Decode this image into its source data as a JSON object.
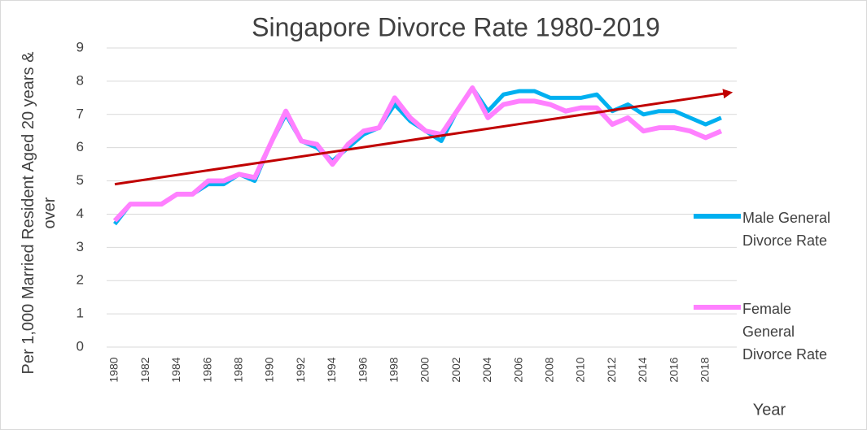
{
  "chart_data": {
    "type": "line",
    "title": "Singapore Divorce Rate 1980-2019",
    "y_label": "Per 1,000 Married Resident Aged 20 years  & over",
    "x_label": "Year",
    "categories": [
      "1980",
      null,
      "1982",
      null,
      "1984",
      null,
      "1986",
      null,
      "1988",
      null,
      "1990",
      null,
      "1992",
      null,
      "1994",
      null,
      "1996",
      null,
      "1998",
      null,
      "2000",
      null,
      "2002",
      null,
      "2004",
      null,
      "2006",
      null,
      "2008",
      null,
      "2010",
      null,
      "2012",
      null,
      "2014",
      null,
      "2016",
      null,
      "2018",
      null
    ],
    "series": [
      {
        "name": "Male General Divorce Rate",
        "color": "#00b0f0",
        "values": [
          3.7,
          4.3,
          4.3,
          4.3,
          4.6,
          4.6,
          4.9,
          4.9,
          5.2,
          5.0,
          6.1,
          7.0,
          6.2,
          6.0,
          5.6,
          6.0,
          6.4,
          6.6,
          7.3,
          6.8,
          6.5,
          6.2,
          7.1,
          7.8,
          7.1,
          7.6,
          7.7,
          7.7,
          7.5,
          7.5,
          7.5,
          7.6,
          7.1,
          7.3,
          7.0,
          7.1,
          7.1,
          6.9,
          6.7,
          6.9
        ]
      },
      {
        "name": "Female General Divorce Rate",
        "color": "#ff80ff",
        "values": [
          3.8,
          4.3,
          4.3,
          4.3,
          4.6,
          4.6,
          5.0,
          5.0,
          5.2,
          5.1,
          6.1,
          7.1,
          6.2,
          6.1,
          5.5,
          6.1,
          6.5,
          6.6,
          7.5,
          6.9,
          6.5,
          6.4,
          7.1,
          7.8,
          6.9,
          7.3,
          7.4,
          7.4,
          7.3,
          7.1,
          7.2,
          7.2,
          6.7,
          6.9,
          6.5,
          6.6,
          6.6,
          6.5,
          6.3,
          6.5
        ]
      }
    ],
    "trend": {
      "color": "#c00000",
      "values": [
        4.9,
        7.65
      ]
    },
    "ylim": [
      0,
      9
    ],
    "yticks": [
      0,
      1,
      2,
      3,
      4,
      5,
      6,
      7,
      8,
      9
    ],
    "grid": true,
    "legend": "right"
  }
}
